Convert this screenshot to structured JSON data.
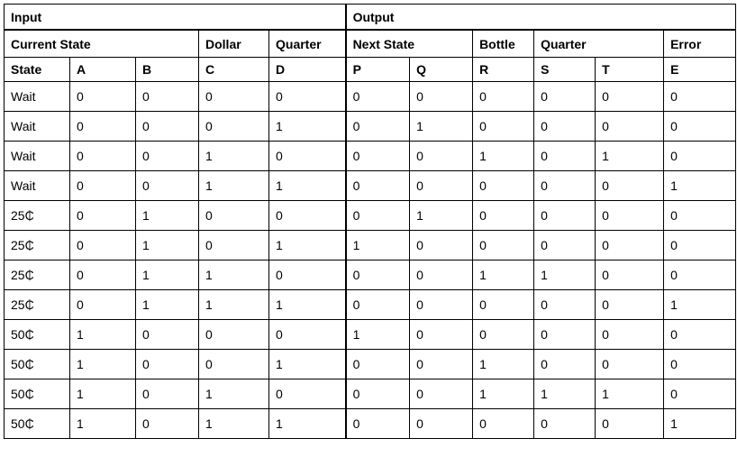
{
  "groups": {
    "input": "Input",
    "output": "Output"
  },
  "subgroups": {
    "current_state": "Current State",
    "dollar": "Dollar",
    "quarter_in": "Quarter",
    "next_state": "Next State",
    "bottle": "Bottle",
    "quarter_out": "Quarter",
    "error": "Error"
  },
  "columns": [
    "State",
    "A",
    "B",
    "C",
    "D",
    "P",
    "Q",
    "R",
    "S",
    "T",
    "E"
  ],
  "rows": [
    [
      "Wait",
      "0",
      "0",
      "0",
      "0",
      "0",
      "0",
      "0",
      "0",
      "0",
      "0"
    ],
    [
      "Wait",
      "0",
      "0",
      "0",
      "1",
      "0",
      "1",
      "0",
      "0",
      "0",
      "0"
    ],
    [
      "Wait",
      "0",
      "0",
      "1",
      "0",
      "0",
      "0",
      "1",
      "0",
      "1",
      "0"
    ],
    [
      "Wait",
      "0",
      "0",
      "1",
      "1",
      "0",
      "0",
      "0",
      "0",
      "0",
      "1"
    ],
    [
      "25₵",
      "0",
      "1",
      "0",
      "0",
      "0",
      "1",
      "0",
      "0",
      "0",
      "0"
    ],
    [
      "25₵",
      "0",
      "1",
      "0",
      "1",
      "1",
      "0",
      "0",
      "0",
      "0",
      "0"
    ],
    [
      "25₵",
      "0",
      "1",
      "1",
      "0",
      "0",
      "0",
      "1",
      "1",
      "0",
      "0"
    ],
    [
      "25₵",
      "0",
      "1",
      "1",
      "1",
      "0",
      "0",
      "0",
      "0",
      "0",
      "1"
    ],
    [
      "50₵",
      "1",
      "0",
      "0",
      "0",
      "1",
      "0",
      "0",
      "0",
      "0",
      "0"
    ],
    [
      "50₵",
      "1",
      "0",
      "0",
      "1",
      "0",
      "0",
      "1",
      "0",
      "0",
      "0"
    ],
    [
      "50₵",
      "1",
      "0",
      "1",
      "0",
      "0",
      "0",
      "1",
      "1",
      "1",
      "0"
    ],
    [
      "50₵",
      "1",
      "0",
      "1",
      "1",
      "0",
      "0",
      "0",
      "0",
      "0",
      "1"
    ]
  ]
}
